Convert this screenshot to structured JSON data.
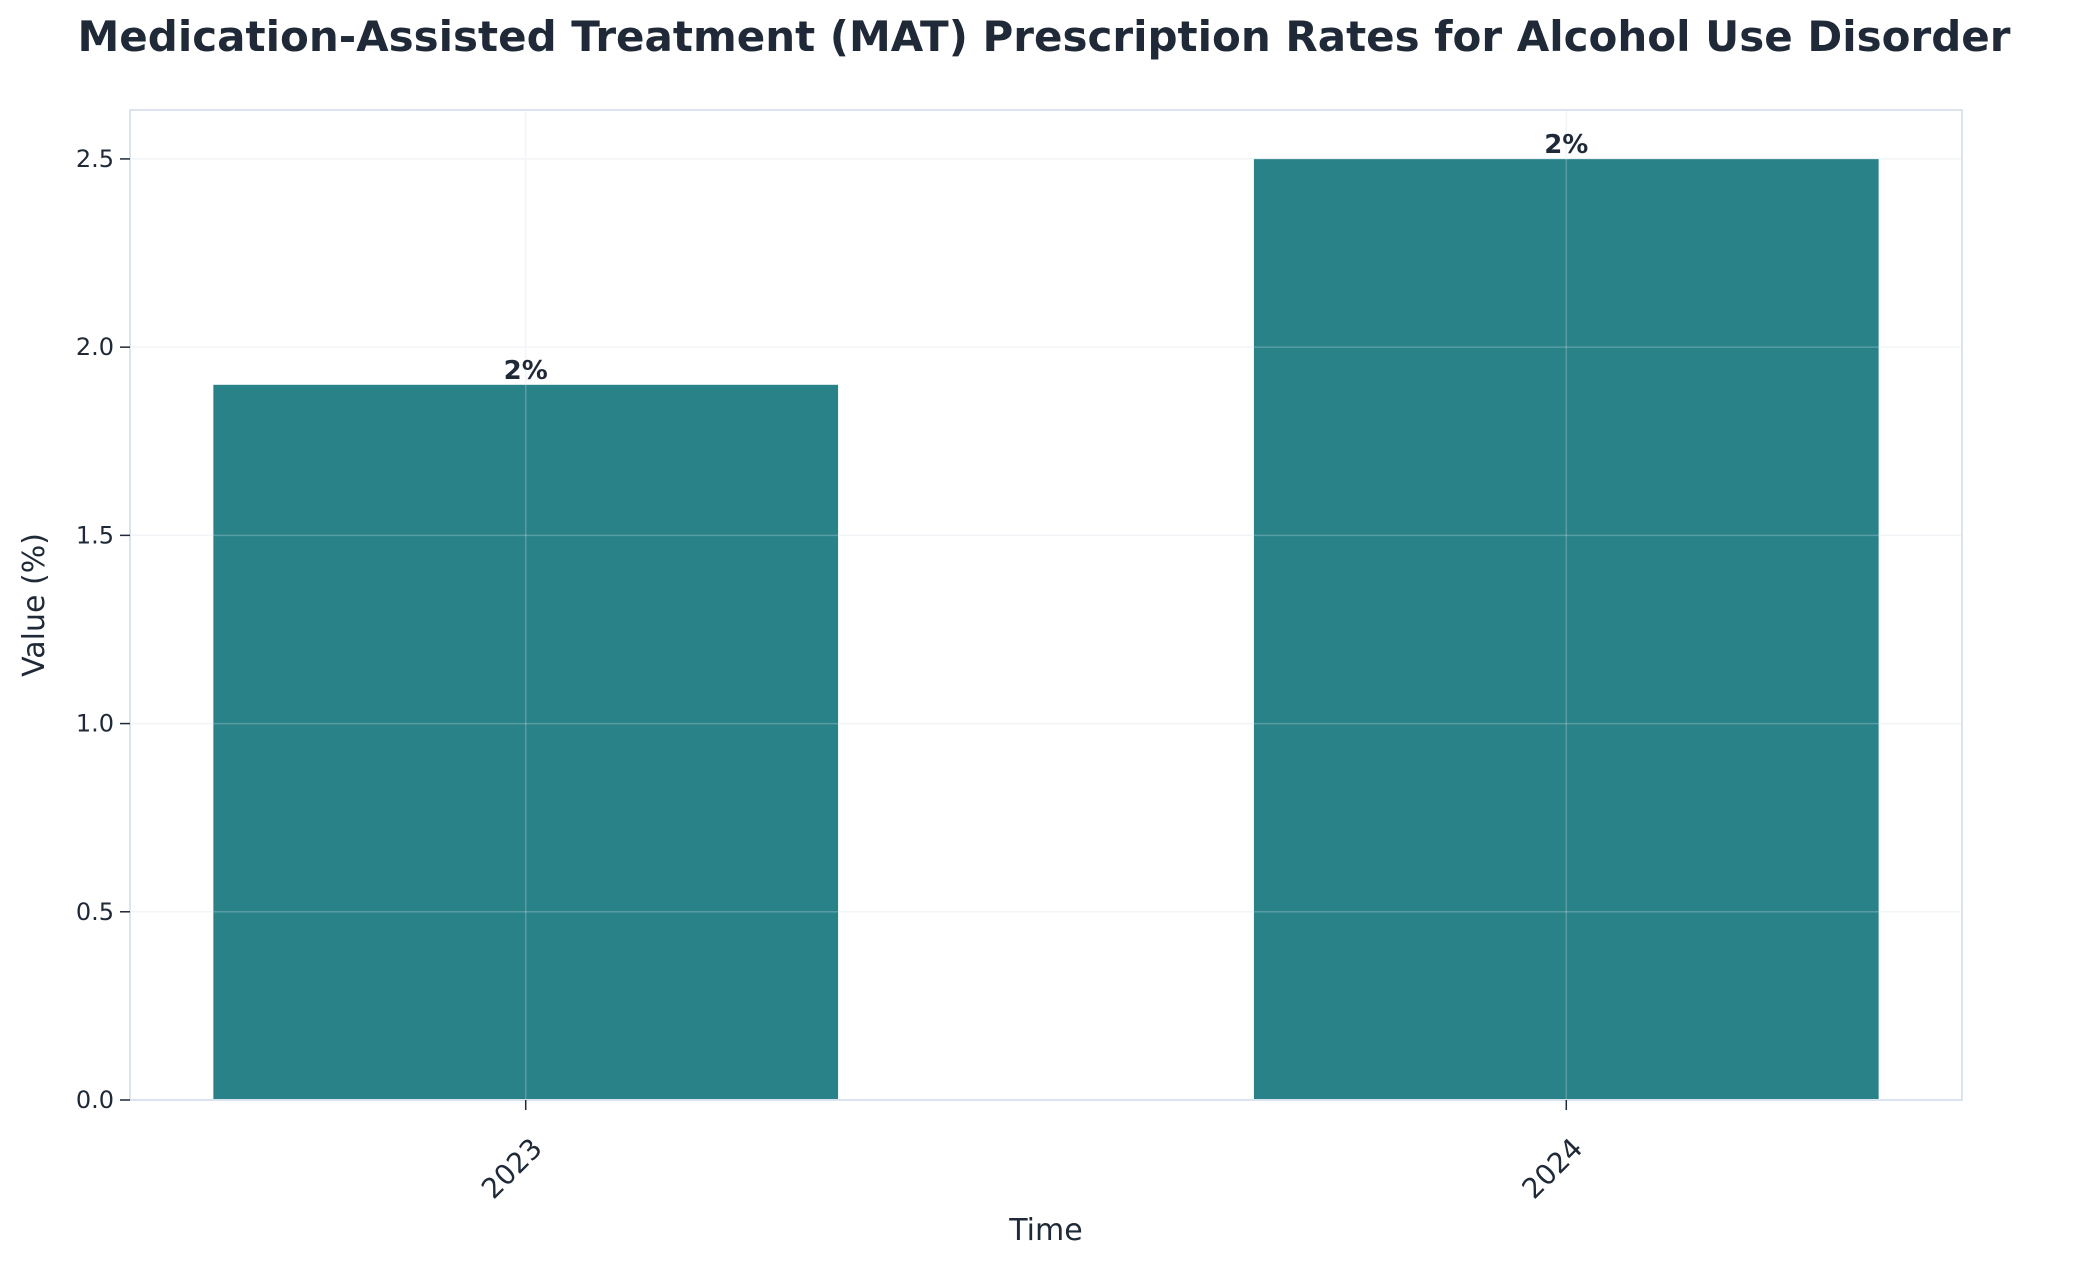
{
  "chart_data": {
    "type": "bar",
    "title": "Medication-Assisted Treatment (MAT) Prescription Rates for Alcohol Use Disorder",
    "xlabel": "Time",
    "ylabel": "Value (%)",
    "categories": [
      "2023",
      "2024"
    ],
    "values": [
      1.9,
      2.5
    ],
    "data_labels": [
      "2%",
      "2%"
    ],
    "ylim": [
      0,
      2.63
    ],
    "yticks": [
      "0.0",
      "0.5",
      "1.0",
      "1.5",
      "2.0",
      "2.5"
    ],
    "grid": true,
    "bar_color": "#2a8289"
  }
}
